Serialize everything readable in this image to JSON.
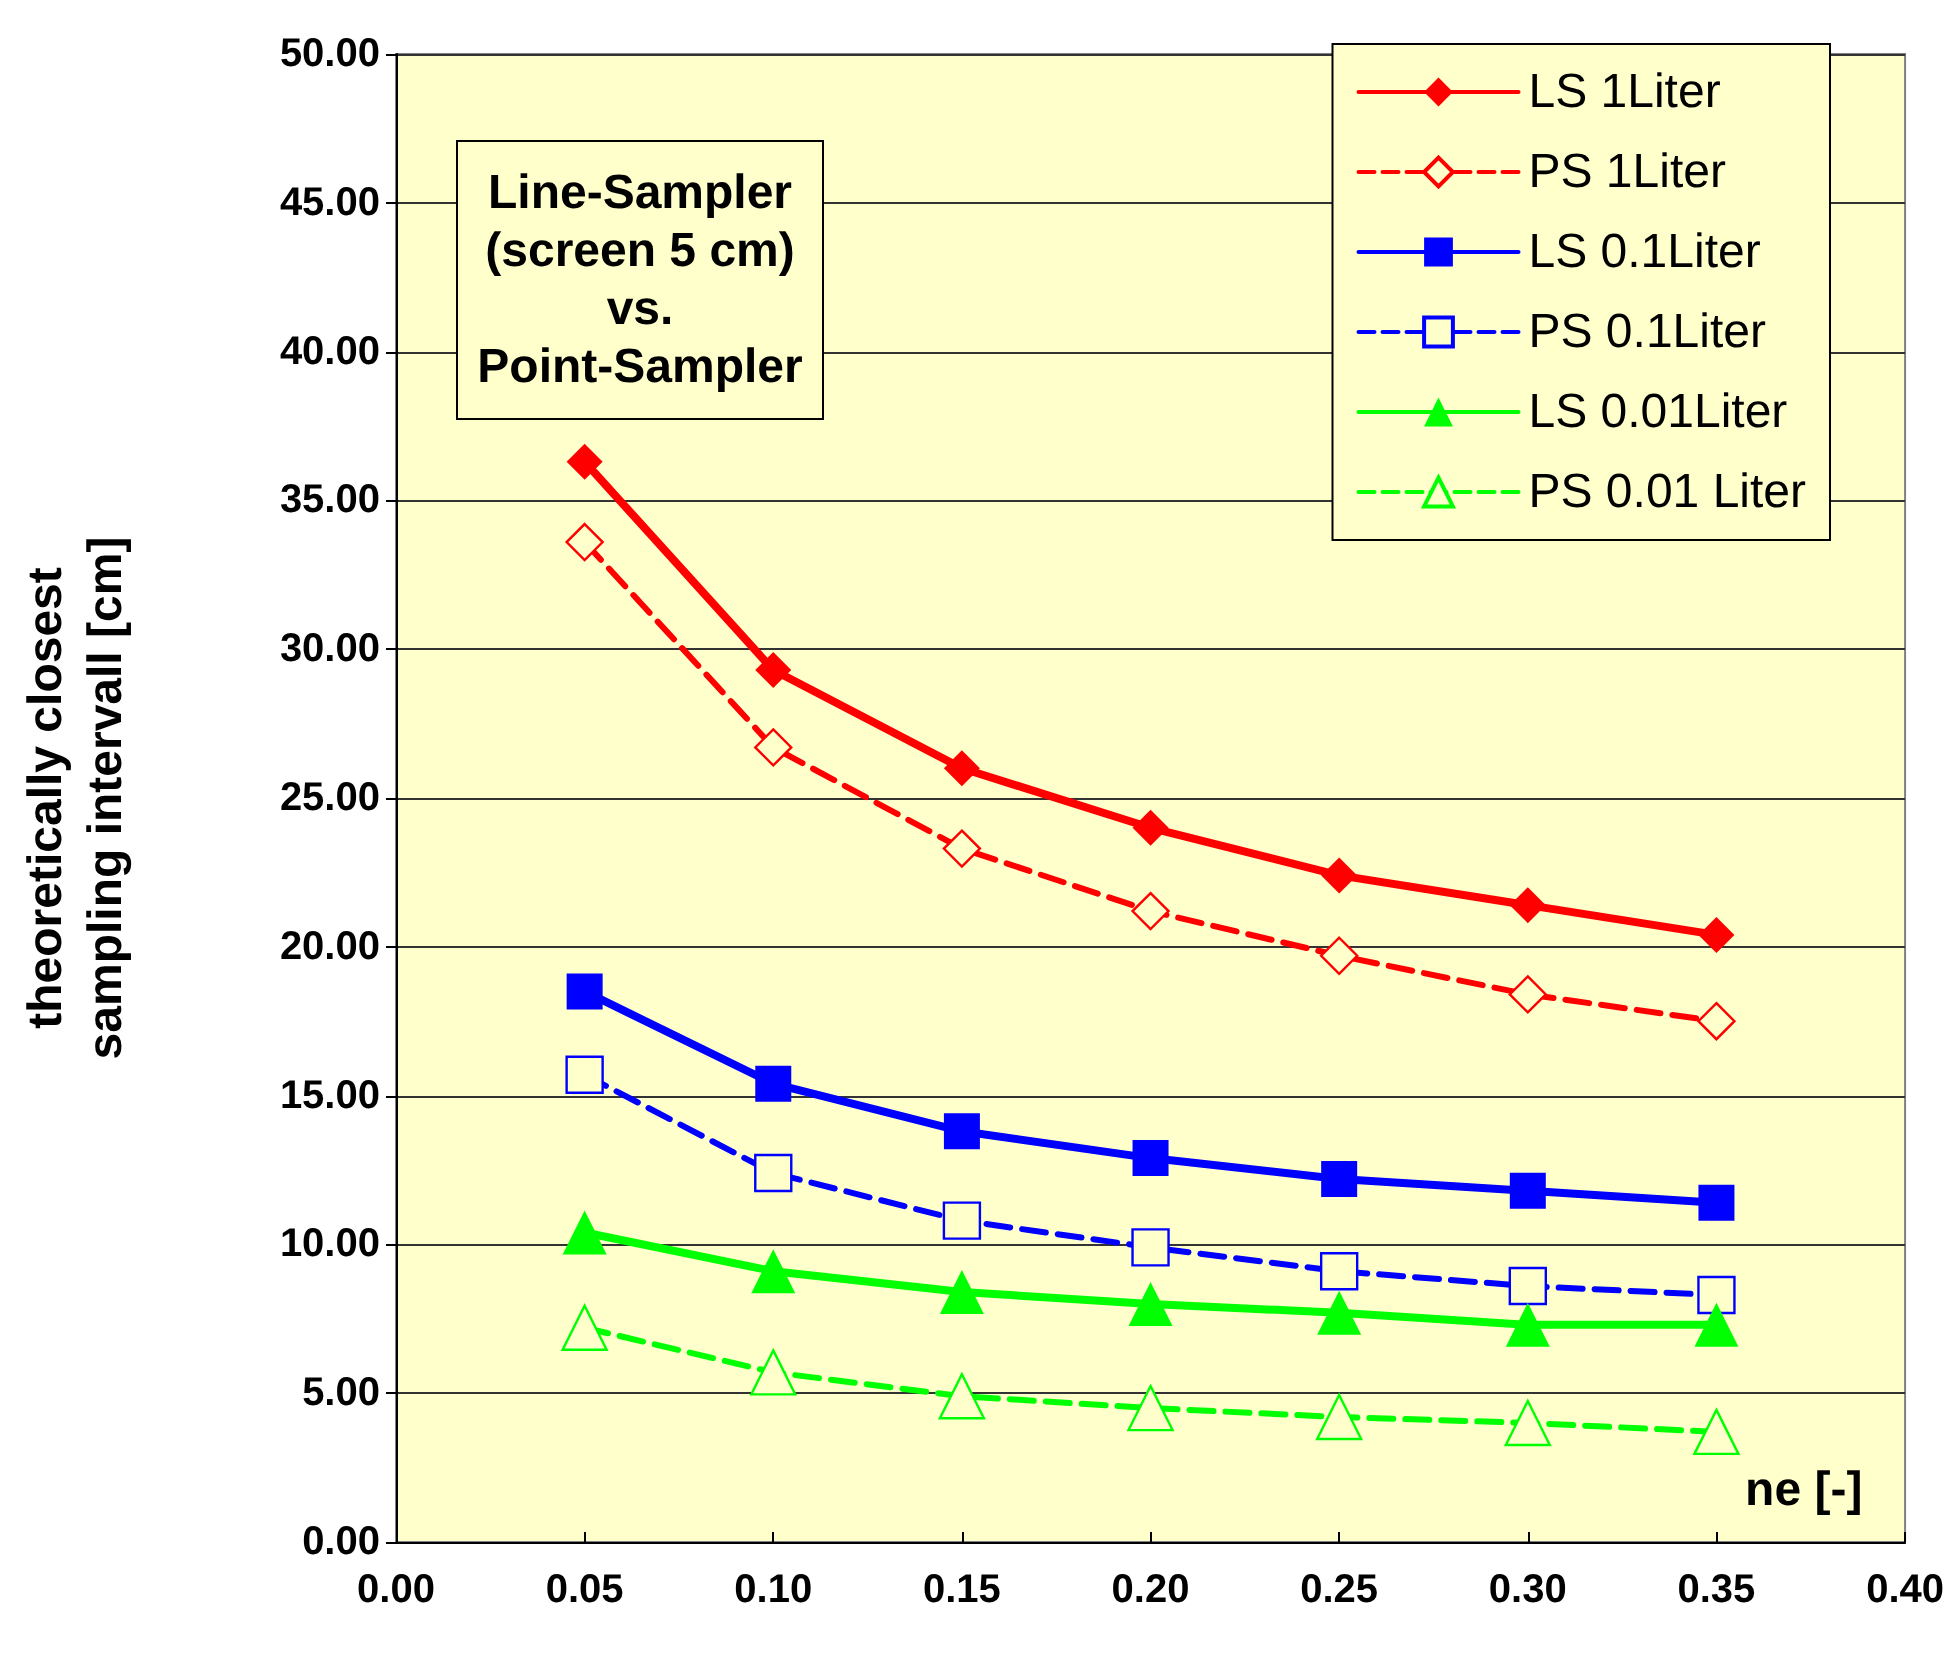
{
  "chart_data": {
    "type": "line",
    "title": "Line-Sampler\n(screen 5 cm)\nvs.\nPoint-Sampler",
    "xlabel": "ne [-]",
    "ylabel": "theoretically closest\nsampling intervall [cm]",
    "x": [
      0.05,
      0.1,
      0.15,
      0.2,
      0.25,
      0.3,
      0.35
    ],
    "xlim": [
      0,
      0.4
    ],
    "xticks": [
      {
        "value": 0,
        "label": "0.00"
      },
      {
        "value": 0.05,
        "label": "0.05"
      },
      {
        "value": 0.1,
        "label": "0.10"
      },
      {
        "value": 0.15,
        "label": "0.15"
      },
      {
        "value": 0.2,
        "label": "0.20"
      },
      {
        "value": 0.25,
        "label": "0.25"
      },
      {
        "value": 0.3,
        "label": "0.30"
      },
      {
        "value": 0.35,
        "label": "0.35"
      },
      {
        "value": 0.4,
        "label": "0.40"
      }
    ],
    "ylim": [
      0,
      50
    ],
    "yticks": [
      {
        "value": 0,
        "label": "0.00"
      },
      {
        "value": 5,
        "label": "5.00"
      },
      {
        "value": 10,
        "label": "10.00"
      },
      {
        "value": 15,
        "label": "15.00"
      },
      {
        "value": 20,
        "label": "20.00"
      },
      {
        "value": 25,
        "label": "25.00"
      },
      {
        "value": 30,
        "label": "30.00"
      },
      {
        "value": 35,
        "label": "35.00"
      },
      {
        "value": 40,
        "label": "40.00"
      },
      {
        "value": 45,
        "label": "45.00"
      },
      {
        "value": 50,
        "label": "50.00"
      }
    ],
    "grid": "y",
    "legend": "top right",
    "series": [
      {
        "name": "LS 1Liter",
        "color": "#ff0000",
        "marker": "diamond",
        "line_style": "solid",
        "values": [
          36.3,
          29.3,
          26.0,
          24.0,
          22.4,
          21.4,
          20.4
        ]
      },
      {
        "name": "PS 1Liter",
        "color": "#ff0000",
        "marker": "diamond",
        "line_style": "dashed",
        "values": [
          33.6,
          26.7,
          23.3,
          21.2,
          19.7,
          18.4,
          17.5
        ]
      },
      {
        "name": "LS 0.1Liter",
        "color": "#0000ff",
        "marker": "square",
        "line_style": "solid",
        "values": [
          18.5,
          15.4,
          13.8,
          12.9,
          12.2,
          11.8,
          11.4
        ]
      },
      {
        "name": "PS 0.1Liter",
        "color": "#0000ff",
        "marker": "square",
        "line_style": "dashed",
        "values": [
          15.7,
          12.4,
          10.8,
          9.9,
          9.1,
          8.6,
          8.3
        ]
      },
      {
        "name": "LS 0.01Liter",
        "color": "#00ff00",
        "marker": "triangle",
        "line_style": "solid",
        "values": [
          10.4,
          9.1,
          8.4,
          8.0,
          7.7,
          7.3,
          7.3
        ]
      },
      {
        "name": "PS 0.01 Liter",
        "color": "#00ff00",
        "marker": "triangle",
        "line_style": "dashed",
        "values": [
          7.2,
          5.7,
          4.9,
          4.5,
          4.2,
          4.0,
          3.7
        ]
      }
    ]
  }
}
